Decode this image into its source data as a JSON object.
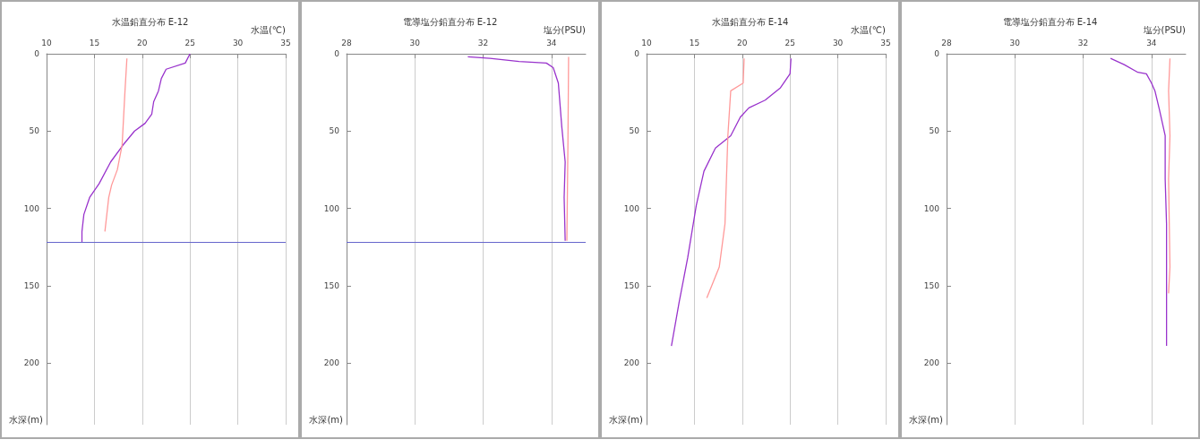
{
  "chart_data": [
    {
      "type": "line",
      "title": "水温鉛直分布 E-12",
      "xlabel": "水温(℃)",
      "ylabel": "水深(m)",
      "xlim": [
        10,
        35
      ],
      "xticks": [
        10,
        15,
        20,
        25,
        30,
        35
      ],
      "ylim": [
        240,
        0
      ],
      "yticks": [
        0,
        50,
        100,
        150,
        200
      ],
      "grid": "x",
      "marker": "none",
      "line_style": "solid",
      "ref_lines": [
        {
          "axis": "y",
          "value": 122,
          "color": "#6666cc"
        }
      ],
      "series": [
        {
          "color": "#9933cc",
          "x": [
            25,
            24.5,
            22.5,
            22,
            21.7,
            21.2,
            21,
            20.3,
            19.2,
            18,
            16.7,
            15.5,
            14.5,
            13.9,
            13.7,
            13.7
          ],
          "values": [
            0,
            6,
            10,
            16,
            24,
            31,
            39,
            45,
            50,
            59,
            70,
            84,
            93,
            104,
            115,
            122
          ]
        },
        {
          "color": "#ff9999",
          "x": [
            18.4,
            18.2,
            17.9,
            17.4,
            16.8,
            16.5,
            16.1
          ],
          "values": [
            3,
            24,
            59,
            75,
            85,
            93,
            115
          ]
        }
      ]
    },
    {
      "type": "line",
      "title": "電導塩分鉛直分布 E-12",
      "xlabel": "塩分(PSU)",
      "ylabel": "水深(m)",
      "xlim": [
        28,
        35
      ],
      "xticks": [
        28,
        30,
        32,
        34
      ],
      "ylim": [
        240,
        0
      ],
      "yticks": [
        0,
        50,
        100,
        150,
        200
      ],
      "grid": "x",
      "marker": "none",
      "line_style": "solid",
      "ref_lines": [
        {
          "axis": "y",
          "value": 122,
          "color": "#6666cc"
        }
      ],
      "series": [
        {
          "color": "#9933cc",
          "x": [
            31.55,
            32.2,
            33.05,
            33.85,
            34.05,
            34.2,
            34.3,
            34.4,
            34.37,
            34.4
          ],
          "values": [
            2,
            3,
            5,
            6,
            9,
            19,
            47,
            70,
            93,
            121
          ]
        },
        {
          "color": "#ff9999",
          "x": [
            34.5,
            34.48,
            34.45
          ],
          "values": [
            2,
            60,
            121
          ]
        }
      ]
    },
    {
      "type": "line",
      "title": "水温鉛直分布 E-14",
      "xlabel": "水温(℃)",
      "ylabel": "水深(m)",
      "xlim": [
        10,
        35
      ],
      "xticks": [
        10,
        15,
        20,
        25,
        30,
        35
      ],
      "ylim": [
        240,
        0
      ],
      "yticks": [
        0,
        50,
        100,
        150,
        200
      ],
      "grid": "x",
      "marker": "none",
      "line_style": "solid",
      "series": [
        {
          "color": "#9933cc",
          "x": [
            25.1,
            25,
            24,
            22.4,
            20.7,
            19.8,
            18.8,
            17.2,
            16,
            15.2,
            14.3,
            13.4,
            12.6
          ],
          "values": [
            3,
            13,
            22,
            30,
            35,
            41,
            53,
            61,
            76,
            98,
            132,
            161,
            189
          ]
        },
        {
          "color": "#ff9999",
          "x": [
            20.2,
            20.1,
            18.8,
            18.5,
            18.2,
            17.6,
            16.3
          ],
          "values": [
            3,
            19,
            24,
            53,
            110,
            138,
            158
          ]
        }
      ]
    },
    {
      "type": "line",
      "title": "電導塩分鉛直分布 E-14",
      "xlabel": "塩分(PSU)",
      "ylabel": "水深(m)",
      "xlim": [
        28,
        35
      ],
      "xticks": [
        28,
        30,
        32,
        34
      ],
      "ylim": [
        240,
        0
      ],
      "yticks": [
        0,
        50,
        100,
        150,
        200
      ],
      "grid": "x",
      "marker": "none",
      "line_style": "solid",
      "series": [
        {
          "color": "#9933cc",
          "x": [
            32.8,
            33.2,
            33.6,
            33.85,
            34,
            34.1,
            34.23,
            34.4,
            34.4,
            34.44,
            34.44,
            34.44
          ],
          "values": [
            3,
            7,
            12,
            13,
            19,
            24,
            36,
            53,
            81,
            110,
            138,
            189
          ]
        },
        {
          "color": "#ff9999",
          "x": [
            34.54,
            34.5,
            34.54,
            34.5,
            34.54,
            34.5
          ],
          "values": [
            3,
            24,
            53,
            81,
            138,
            155
          ]
        }
      ]
    }
  ]
}
